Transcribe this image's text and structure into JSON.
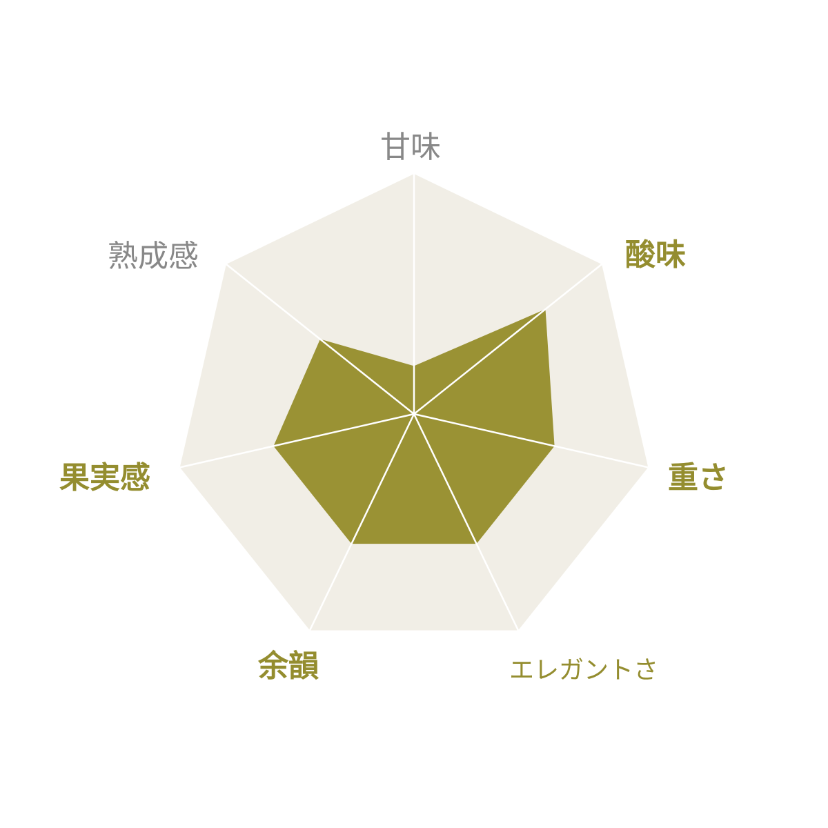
{
  "chart_data": {
    "type": "radar",
    "title": "",
    "rmax": 5,
    "axes": [
      {
        "label": "甘味",
        "value": 1.0,
        "highlight": false
      },
      {
        "label": "酸味",
        "value": 3.5,
        "highlight": true
      },
      {
        "label": "重さ",
        "value": 3.0,
        "highlight": true
      },
      {
        "label": "エレガントさ",
        "value": 3.0,
        "highlight": true
      },
      {
        "label": "余韻",
        "value": 3.0,
        "highlight": true
      },
      {
        "label": "果実感",
        "value": 3.0,
        "highlight": true
      },
      {
        "label": "熟成感",
        "value": 2.5,
        "highlight": false
      }
    ],
    "grid": false,
    "legend": "none"
  },
  "colors": {
    "background_polygon": "#f1eee6",
    "spoke": "#ffffff",
    "series_fill": "#9a9234",
    "label_highlight": "#948d2f",
    "label_muted": "#888888"
  }
}
